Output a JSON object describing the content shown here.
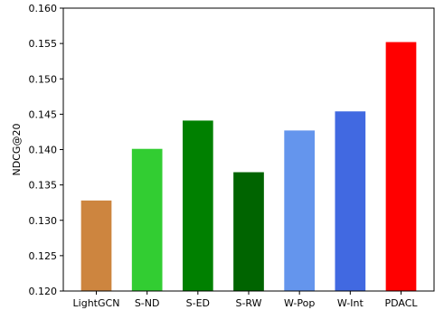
{
  "chart_data": {
    "type": "bar",
    "title": "",
    "xlabel": "",
    "ylabel": "NDCG@20",
    "ylim": [
      0.12,
      0.16
    ],
    "yticks": [
      "0.120",
      "0.125",
      "0.130",
      "0.135",
      "0.140",
      "0.145",
      "0.150",
      "0.155",
      "0.160"
    ],
    "grid": false,
    "categories": [
      "LightGCN",
      "S-ND",
      "S-ED",
      "S-RW",
      "W-Pop",
      "W-Int",
      "PDACL"
    ],
    "values": [
      0.1328,
      0.1401,
      0.1441,
      0.1368,
      0.1427,
      0.1454,
      0.1552
    ],
    "colors": [
      "#cd853f",
      "#32cd32",
      "#008000",
      "#006400",
      "#6495ed",
      "#4169e1",
      "#ff0000"
    ]
  }
}
